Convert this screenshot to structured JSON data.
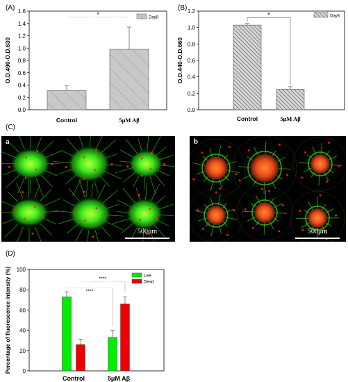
{
  "panels": {
    "A": "(A)",
    "B": "(B)",
    "C": "(C)",
    "D": "(D)"
  },
  "chart_data": [
    {
      "id": "A",
      "type": "bar",
      "ylabel": "O.D.490-O.D.630",
      "categories": [
        "Control",
        "5μM Aβ"
      ],
      "series": [
        {
          "name": "Day8",
          "values": [
            0.31,
            0.98
          ],
          "errors": [
            0.08,
            0.36
          ]
        }
      ],
      "ylim": [
        0,
        1.6
      ],
      "yticks": [
        "0.0",
        "0.2",
        "0.4",
        "0.6",
        "0.8",
        "1.0",
        "1.2",
        "1.4",
        "1.6"
      ],
      "legend": "top-right",
      "significance": [
        {
          "label": "*",
          "between": [
            0,
            1
          ],
          "y": 1.5
        }
      ]
    },
    {
      "id": "B",
      "type": "bar",
      "ylabel": "O.D.440-O.D.660",
      "categories": [
        "Control",
        "5μM Aβ"
      ],
      "series": [
        {
          "name": "Day8",
          "values": [
            1.03,
            0.25
          ],
          "errors": [
            0.02,
            0.03
          ]
        }
      ],
      "ylim": [
        0,
        1.2
      ],
      "yticks": [
        "0.0",
        "0.2",
        "0.4",
        "0.6",
        "0.8",
        "1.0",
        "1.2"
      ],
      "legend": "top-right",
      "significance": [
        {
          "label": "*",
          "between": [
            0,
            1
          ],
          "y": 1.12
        }
      ]
    },
    {
      "id": "D",
      "type": "bar",
      "ylabel": "Percentage of fluorescence intensity (%)",
      "categories": [
        "Control",
        "5μM Aβ"
      ],
      "series": [
        {
          "name": "Live",
          "values": [
            73,
            33
          ],
          "errors": [
            5,
            7
          ]
        },
        {
          "name": "Dead",
          "values": [
            26,
            66
          ],
          "errors": [
            5,
            7
          ]
        }
      ],
      "ylim": [
        0,
        100
      ],
      "yticks": [
        "0",
        "20",
        "40",
        "60",
        "80",
        "100"
      ],
      "legend": "top-right",
      "significance": [
        {
          "label": "****",
          "between": [
            0,
            1
          ],
          "y": 82
        },
        {
          "label": "****",
          "between": [
            0,
            1
          ],
          "y": 88
        }
      ]
    }
  ],
  "micrographs": {
    "a": {
      "label": "a",
      "scale": "500μm"
    },
    "b": {
      "label": "b",
      "scale": "500μm"
    }
  },
  "colors": {
    "live": "#00ee00",
    "dead": "#ee0000",
    "bar_gray": "#c8c8c8"
  }
}
